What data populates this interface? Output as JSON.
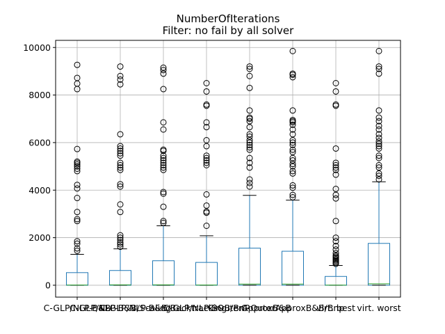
{
  "chart_data": {
    "type": "box",
    "title": "NumberOfIterations",
    "subtitle": "Filter: no fail by all solver",
    "xlabel": "",
    "ylabel": "",
    "ylim": [
      -500,
      10300
    ],
    "yticks": [
      0,
      2000,
      4000,
      6000,
      8000,
      10000
    ],
    "grid": true,
    "categories": [
      "C-GLP/NLP-B&B",
      "C-GLP/NLP-B&B/Scaling",
      "C-GLP/NLP-B&B/Backtracking",
      "C-GLP/NLP-B&B/BnP",
      "C-OuterApproxB&B",
      "C-OuterApproxB&B/Bnp",
      "virt. best",
      "virt. worst"
    ],
    "boxes": [
      {
        "q1": 0,
        "median": 10,
        "q3": 530,
        "whisker_low": 0,
        "whisker_high": 1300,
        "fliers": [
          1450,
          1550,
          1750,
          1850,
          2700,
          2780,
          3080,
          3670,
          4070,
          4220,
          4800,
          4900,
          5000,
          5080,
          5150,
          5200,
          5730,
          8250,
          8480,
          8720,
          9270
        ]
      },
      {
        "q1": 0,
        "median": 15,
        "q3": 620,
        "whisker_low": 0,
        "whisker_high": 1530,
        "fliers": [
          1620,
          1720,
          1800,
          1900,
          2000,
          2100,
          3080,
          3400,
          4150,
          4250,
          4850,
          4950,
          5050,
          5150,
          5450,
          5550,
          5650,
          5750,
          5850,
          6350,
          8450,
          8650,
          8800,
          9200
        ]
      },
      {
        "q1": 0,
        "median": 15,
        "q3": 1030,
        "whisker_low": 0,
        "whisker_high": 2500,
        "fliers": [
          2620,
          2700,
          3300,
          3850,
          3920,
          4850,
          4950,
          5050,
          5150,
          5250,
          5350,
          5450,
          5650,
          5700,
          6550,
          6850,
          8250,
          8900,
          9050,
          9150
        ]
      },
      {
        "q1": 0,
        "median": 10,
        "q3": 960,
        "whisker_low": 0,
        "whisker_high": 2080,
        "fliers": [
          2500,
          3050,
          3100,
          3350,
          3820,
          5050,
          5150,
          5250,
          5350,
          5450,
          5850,
          6100,
          6650,
          6850,
          7550,
          7600,
          8150,
          8500
        ]
      },
      {
        "q1": 0,
        "median": 50,
        "q3": 1560,
        "whisker_low": 0,
        "whisker_high": 3780,
        "fliers": [
          4150,
          4300,
          4450,
          4950,
          5150,
          5350,
          5700,
          5800,
          5900,
          6000,
          6100,
          6250,
          6350,
          6650,
          6900,
          7000,
          7050,
          7350,
          8300,
          8800,
          9100,
          9200
        ]
      },
      {
        "q1": 0,
        "median": 50,
        "q3": 1430,
        "whisker_low": 0,
        "whisker_high": 3580,
        "fliers": [
          3700,
          3800,
          4100,
          4200,
          4700,
          4800,
          5000,
          5100,
          5250,
          5350,
          5600,
          5700,
          5900,
          6000,
          6100,
          6350,
          6550,
          6750,
          6850,
          6900,
          6950,
          7350,
          8750,
          8850,
          8900,
          9850
        ]
      },
      {
        "q1": 0,
        "median": 5,
        "q3": 370,
        "whisker_low": 0,
        "whisker_high": 830,
        "fliers": [
          900,
          950,
          1000,
          1050,
          1100,
          1150,
          1200,
          1250,
          1350,
          1500,
          1650,
          1850,
          2000,
          2700,
          3650,
          3800,
          4050,
          4650,
          4850,
          4950,
          5050,
          5150,
          5750,
          7550,
          7600,
          8150,
          8500
        ]
      },
      {
        "q1": 0,
        "median": 60,
        "q3": 1760,
        "whisker_low": 0,
        "whisker_high": 4350,
        "fliers": [
          4450,
          4600,
          4700,
          4950,
          5050,
          5350,
          5450,
          5750,
          5850,
          5950,
          6050,
          6200,
          6350,
          6550,
          6700,
          6900,
          7050,
          7350,
          8900,
          9100,
          9200,
          9850
        ]
      }
    ]
  }
}
